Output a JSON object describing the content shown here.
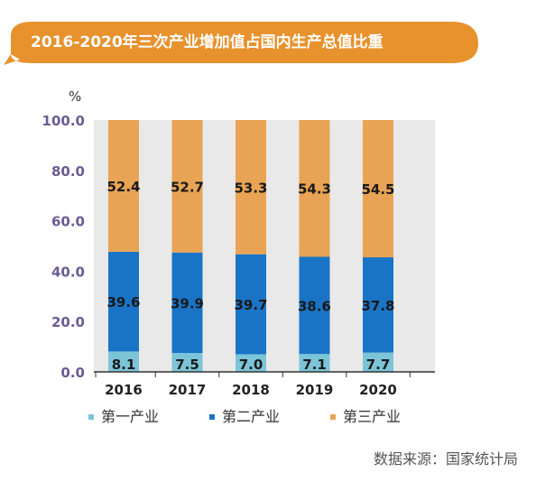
{
  "chart_data": {
    "type": "bar",
    "stacked": true,
    "title": "2016-2020年三次产业增加值占国内生产总值比重",
    "unit": "%",
    "categories": [
      "2016",
      "2017",
      "2018",
      "2019",
      "2020"
    ],
    "series": [
      {
        "name": "第一产业",
        "values": [
          8.1,
          7.5,
          7.0,
          7.1,
          7.7
        ],
        "color": "#7cc4d8"
      },
      {
        "name": "第二产业",
        "values": [
          39.6,
          39.9,
          39.7,
          38.6,
          37.8
        ],
        "color": "#1a74c6"
      },
      {
        "name": "第三产业",
        "values": [
          52.4,
          52.7,
          53.3,
          54.3,
          54.5
        ],
        "color": "#e8a454"
      }
    ],
    "ylim": [
      0,
      100
    ],
    "yticks": [
      "0.0",
      "20.0",
      "40.0",
      "60.0",
      "80.0",
      "100.0"
    ],
    "grid": false,
    "legend": "bottom",
    "source": "数据来源：国家统计局"
  },
  "colors": {
    "title_bg": "#e8922e",
    "plot_bg": "#e9e9e9",
    "axis": "#333333"
  }
}
